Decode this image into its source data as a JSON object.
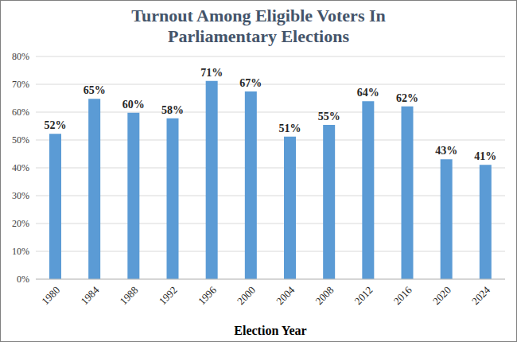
{
  "chart_data": {
    "type": "bar",
    "title": "Turnout Among Eligible Voters In Parliamentary Elections",
    "x_label": "Election Year",
    "categories": [
      "1980",
      "1984",
      "1988",
      "1992",
      "1996",
      "2000",
      "2004",
      "2008",
      "2012",
      "2016",
      "2020",
      "2024"
    ],
    "values": [
      52.2,
      64.8,
      59.8,
      57.8,
      71.2,
      67.4,
      51.2,
      55.4,
      63.9,
      62.1,
      43.1,
      41.1
    ],
    "value_labels": [
      "52%",
      "65%",
      "60%",
      "58%",
      "71%",
      "67%",
      "51%",
      "55%",
      "64%",
      "62%",
      "43%",
      "41%"
    ],
    "color": "#5b9bd5",
    "ylim": [
      0,
      80
    ],
    "yticks": [
      {
        "value": 0,
        "label": "0%"
      },
      {
        "value": 10,
        "label": "10%"
      },
      {
        "value": 20,
        "label": "20%"
      },
      {
        "value": 30,
        "label": "30%"
      },
      {
        "value": 40,
        "label": "40%"
      },
      {
        "value": 50,
        "label": "50%"
      },
      {
        "value": 60,
        "label": "60%"
      },
      {
        "value": 70,
        "label": "70%"
      },
      {
        "value": 80,
        "label": "80%"
      }
    ],
    "grid": true,
    "data_labels": true
  }
}
